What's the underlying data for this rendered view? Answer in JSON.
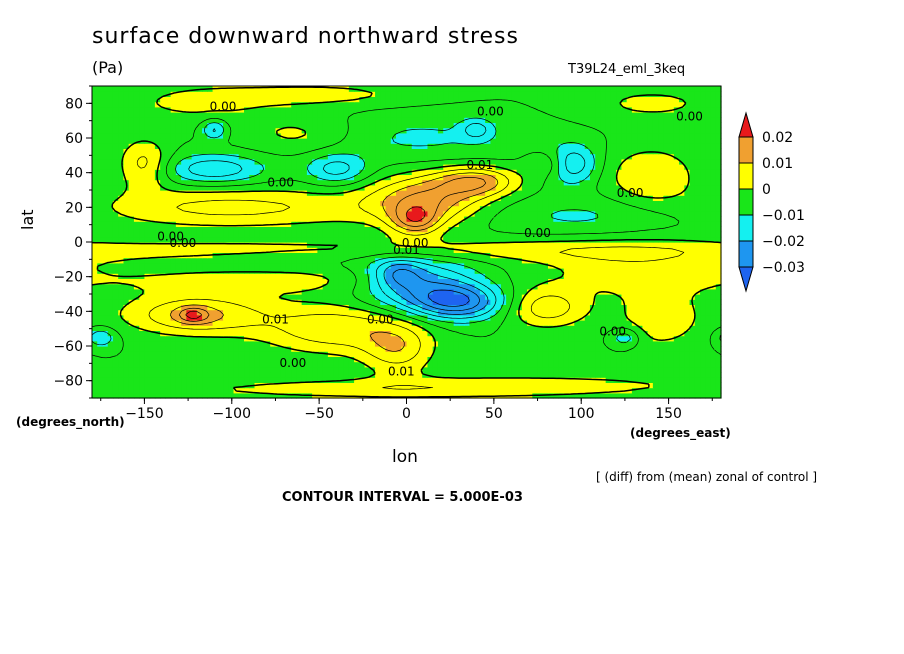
{
  "chart_data": {
    "type": "heatmap",
    "title": "surface downward northward stress",
    "units": "(Pa)",
    "run_label": "T39L24_eml_3keq",
    "xlabel": "lon",
    "ylabel": "lat",
    "x_unit_label": "(degrees_east)",
    "y_unit_label": "(degrees_north)",
    "xlim": [
      -180,
      180
    ],
    "ylim": [
      -90,
      90
    ],
    "x_ticks": [
      {
        "value": -150,
        "label": "−150"
      },
      {
        "value": -100,
        "label": "−100"
      },
      {
        "value": -50,
        "label": "−50"
      },
      {
        "value": 0,
        "label": "0"
      },
      {
        "value": 50,
        "label": "50"
      },
      {
        "value": 100,
        "label": "100"
      },
      {
        "value": 150,
        "label": "150"
      }
    ],
    "y_ticks": [
      {
        "value": 80,
        "label": "80"
      },
      {
        "value": 60,
        "label": "60"
      },
      {
        "value": 40,
        "label": "40"
      },
      {
        "value": 20,
        "label": "20"
      },
      {
        "value": 0,
        "label": "0"
      },
      {
        "value": -20,
        "label": "−20"
      },
      {
        "value": -40,
        "label": "−40"
      },
      {
        "value": -60,
        "label": "−60"
      },
      {
        "value": -80,
        "label": "−80"
      }
    ],
    "color_scale": {
      "boundaries": [
        {
          "value": 0.02,
          "label": "0.02"
        },
        {
          "value": 0.01,
          "label": "0.01"
        },
        {
          "value": 0,
          "label": "0"
        },
        {
          "value": -0.01,
          "label": "−0.01"
        },
        {
          "value": -0.02,
          "label": "−0.02"
        },
        {
          "value": -0.03,
          "label": "−0.03"
        }
      ],
      "bands": [
        {
          "range": [
            0.02,
            0.03
          ],
          "color": "#e8191c"
        },
        {
          "range": [
            0.01,
            0.02
          ],
          "color": "#f0a030"
        },
        {
          "range": [
            0,
            0.01
          ],
          "color": "#ffff00"
        },
        {
          "range": [
            -0.01,
            0
          ],
          "color": "#19e619"
        },
        {
          "range": [
            -0.02,
            -0.01
          ],
          "color": "#14f0f0"
        },
        {
          "range": [
            -0.03,
            -0.02
          ],
          "color": "#1e96f0"
        },
        {
          "range": [
            -0.04,
            -0.03
          ],
          "color": "#1e64f0"
        }
      ]
    },
    "base_level": -0.005,
    "features": [
      {
        "lon": -120,
        "lat": -42,
        "a": 0.016,
        "sx": 28,
        "sy": 8
      },
      {
        "lon": -122,
        "lat": -42,
        "a": 0.012,
        "sx": 6,
        "sy": 3
      },
      {
        "lon": -40,
        "lat": -50,
        "a": 0.014,
        "sx": 30,
        "sy": 10
      },
      {
        "lon": -5,
        "lat": -62,
        "a": 0.012,
        "sx": 14,
        "sy": 10
      },
      {
        "lon": 80,
        "lat": -38,
        "a": 0.013,
        "sx": 16,
        "sy": 8
      },
      {
        "lon": 145,
        "lat": -45,
        "a": 0.008,
        "sx": 18,
        "sy": 12
      },
      {
        "lon": -150,
        "lat": 45,
        "a": 0.012,
        "sx": 10,
        "sy": 10
      },
      {
        "lon": 10,
        "lat": 25,
        "a": 0.018,
        "sx": 22,
        "sy": 10
      },
      {
        "lon": 40,
        "lat": 35,
        "a": 0.018,
        "sx": 16,
        "sy": 6
      },
      {
        "lon": 5,
        "lat": 12,
        "a": 0.016,
        "sx": 10,
        "sy": 6
      },
      {
        "lon": 80,
        "lat": 45,
        "a": 0.008,
        "sx": 8,
        "sy": 5
      },
      {
        "lon": 140,
        "lat": 38,
        "a": 0.01,
        "sx": 18,
        "sy": 12
      },
      {
        "lon": -70,
        "lat": 20,
        "a": 0.007,
        "sx": 60,
        "sy": 8
      },
      {
        "lon": -120,
        "lat": 20,
        "a": 0.006,
        "sx": 45,
        "sy": 8
      },
      {
        "lon": 0,
        "lat": -5,
        "a": 0.009,
        "sx": 180,
        "sy": 5
      },
      {
        "lon": -80,
        "lat": -22,
        "a": 0.007,
        "sx": 70,
        "sy": 6
      },
      {
        "lon": 130,
        "lat": -15,
        "a": 0.007,
        "sx": 40,
        "sy": 12
      },
      {
        "lon": -50,
        "lat": 85,
        "a": 0.007,
        "sx": 40,
        "sy": 5
      },
      {
        "lon": -120,
        "lat": 80,
        "a": 0.006,
        "sx": 30,
        "sy": 8
      },
      {
        "lon": 140,
        "lat": 80,
        "a": 0.006,
        "sx": 30,
        "sy": 8
      },
      {
        "lon": -60,
        "lat": 62,
        "a": 0.008,
        "sx": 25,
        "sy": 8
      },
      {
        "lon": -20,
        "lat": -85,
        "a": 0.007,
        "sx": 90,
        "sy": 4
      },
      {
        "lon": 80,
        "lat": -82,
        "a": 0.005,
        "sx": 80,
        "sy": 5
      },
      {
        "lon": 10,
        "lat": -25,
        "a": -0.019,
        "sx": 24,
        "sy": 10
      },
      {
        "lon": 30,
        "lat": -35,
        "a": -0.02,
        "sx": 18,
        "sy": 7
      },
      {
        "lon": -5,
        "lat": -18,
        "a": -0.012,
        "sx": 10,
        "sy": 6
      },
      {
        "lon": -110,
        "lat": 42,
        "a": -0.014,
        "sx": 20,
        "sy": 6
      },
      {
        "lon": -40,
        "lat": 42,
        "a": -0.012,
        "sx": 12,
        "sy": 6
      },
      {
        "lon": 95,
        "lat": 45,
        "a": -0.014,
        "sx": 10,
        "sy": 8
      },
      {
        "lon": -110,
        "lat": 65,
        "a": -0.012,
        "sx": 5,
        "sy": 4
      },
      {
        "lon": 40,
        "lat": 65,
        "a": -0.01,
        "sx": 6,
        "sy": 4
      },
      {
        "lon": -175,
        "lat": -55,
        "a": -0.01,
        "sx": 6,
        "sy": 4
      },
      {
        "lon": 125,
        "lat": -55,
        "a": -0.01,
        "sx": 6,
        "sy": 4
      },
      {
        "lon": 0,
        "lat": 60,
        "a": -0.006,
        "sx": 50,
        "sy": 10
      },
      {
        "lon": 100,
        "lat": 15,
        "a": -0.006,
        "sx": 40,
        "sy": 8
      },
      {
        "lon": -30,
        "lat": -8,
        "a": -0.005,
        "sx": 60,
        "sy": 5
      }
    ],
    "contour_labels": [
      {
        "lon": -105,
        "lat": 78,
        "text": "0.00"
      },
      {
        "lon": 48,
        "lat": 75,
        "text": "0.00"
      },
      {
        "lon": 162,
        "lat": 72,
        "text": "0.00"
      },
      {
        "lon": 42,
        "lat": 44,
        "text": "0.01"
      },
      {
        "lon": -72,
        "lat": 34,
        "text": "0.00"
      },
      {
        "lon": 128,
        "lat": 28,
        "text": "0.00"
      },
      {
        "lon": 75,
        "lat": 5,
        "text": "0.00"
      },
      {
        "lon": -135,
        "lat": 3,
        "text": "0.00"
      },
      {
        "lon": -128,
        "lat": -1,
        "text": "0.00"
      },
      {
        "lon": 5,
        "lat": -1,
        "text": "0.00"
      },
      {
        "lon": 0,
        "lat": -5,
        "text": "0.01"
      },
      {
        "lon": -75,
        "lat": -45,
        "text": "0.01"
      },
      {
        "lon": -15,
        "lat": -45,
        "text": "0.00"
      },
      {
        "lon": 118,
        "lat": -52,
        "text": "0.00"
      },
      {
        "lon": -65,
        "lat": -70,
        "text": "0.00"
      },
      {
        "lon": -3,
        "lat": -75,
        "text": "0.01"
      }
    ]
  },
  "footer": {
    "note": "[ (diff) from (mean) zonal of control ]",
    "contour_interval": "CONTOUR INTERVAL = 5.000E-03"
  }
}
